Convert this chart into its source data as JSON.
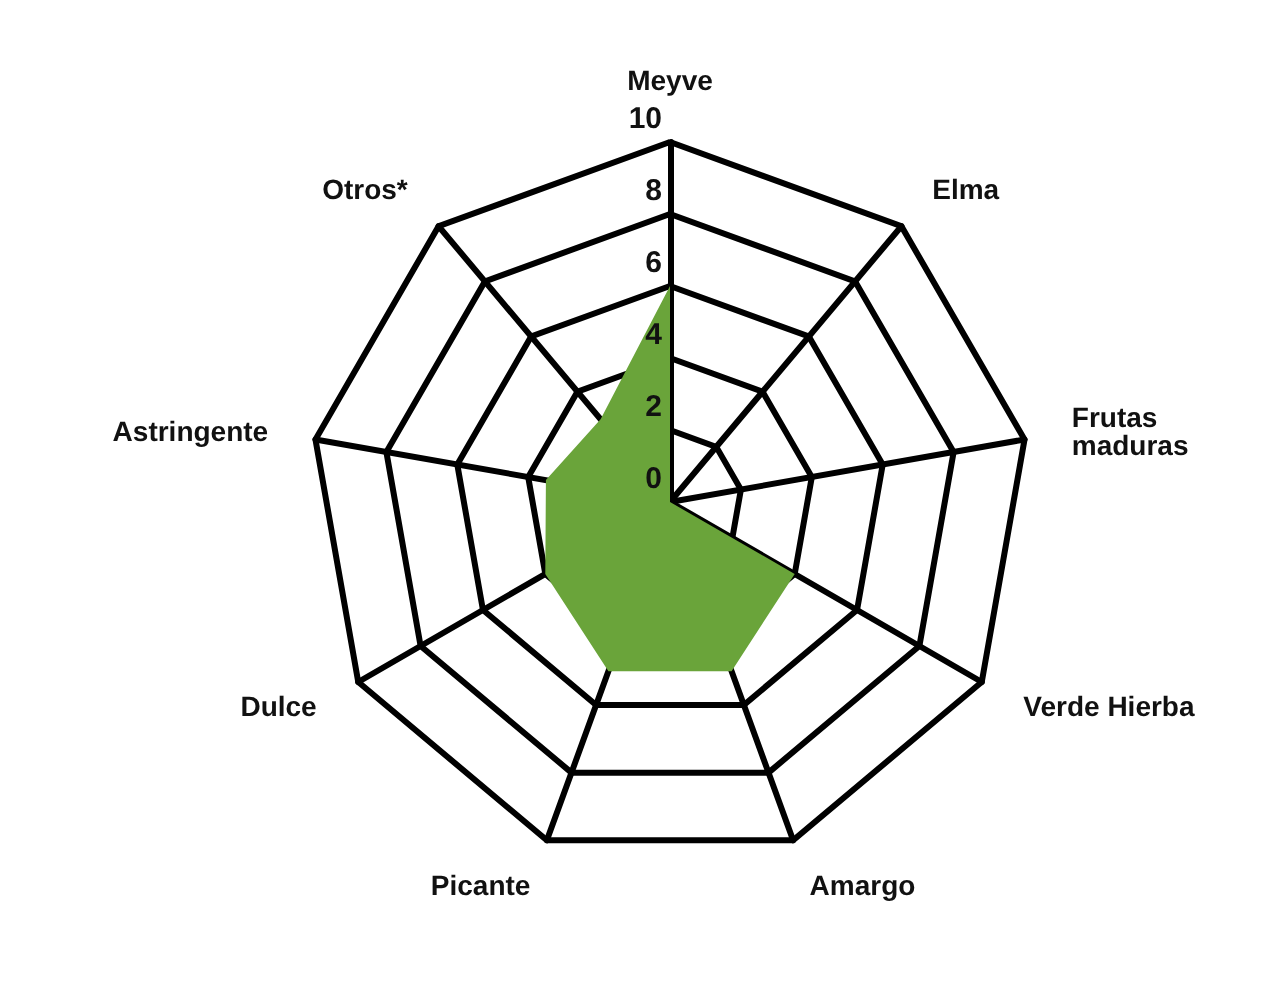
{
  "chart_data": {
    "type": "radar",
    "categories": [
      "Meyve",
      "Elma",
      "Frutas maduras",
      "Verde Hierba",
      "Amargo",
      "Picante",
      "Dulce",
      "Astringente",
      "Otros*"
    ],
    "series": [
      {
        "color": "#6aa43a",
        "values": [
          6,
          0,
          0,
          4,
          5,
          5,
          4,
          3.5,
          3
        ]
      }
    ],
    "ylim": [
      0,
      10
    ],
    "yticks": [
      0,
      2,
      4,
      6,
      8,
      10
    ]
  }
}
